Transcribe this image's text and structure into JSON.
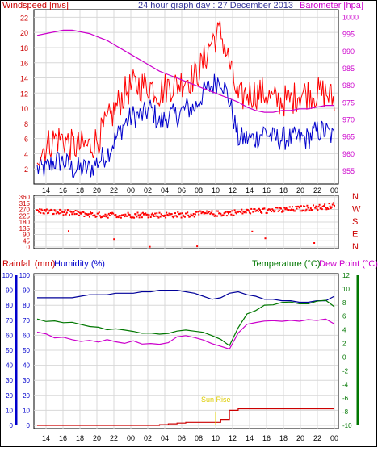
{
  "colors": {
    "wind": "#ff0000",
    "wind_blue": "#0000cc",
    "barometer": "#cc00cc",
    "direction": "#ff0000",
    "rainfall": "#cc0000",
    "humidity": "#000099",
    "temperature": "#007700",
    "dewpoint": "#cc00cc",
    "label_red": "#cc0000",
    "label_blue": "#0000cc",
    "title": "#333399",
    "sunrise": "#ddcc00",
    "grid": "#d8d8d8",
    "frame": "#000000"
  },
  "panel1": {
    "left_label": "Windspeed [m/s]",
    "title": "24 hour graph day : 27 December 2013",
    "right_label": "Barometer [hpa]",
    "wind_ticks": [
      "22",
      "20",
      "18",
      "16",
      "14",
      "12",
      "10",
      "8",
      "6",
      "4",
      "2"
    ],
    "baro_ticks": [
      "1000",
      "995",
      "990",
      "985",
      "980",
      "975",
      "970",
      "965",
      "960",
      "955"
    ]
  },
  "panel2": {
    "dir_ticks": [
      "360",
      "315",
      "270",
      "225",
      "180",
      "135",
      "90",
      "45",
      "0"
    ],
    "compass": [
      "N",
      "W",
      "S",
      "E",
      "N"
    ]
  },
  "panel3": {
    "left_label": "Rainfall (mm)",
    "mid_label": "Humidity (%)",
    "right_label": "Temperature (°C)",
    "right_label2": "Dew Point (°C)",
    "rain_ticks": [
      "100",
      "90",
      "80",
      "70",
      "60",
      "50",
      "40",
      "30",
      "20",
      "10",
      "0"
    ],
    "hum_ticks": [
      "100",
      "90",
      "80",
      "70",
      "60",
      "50",
      "40",
      "30",
      "20",
      "10",
      "0"
    ],
    "temp_ticks": [
      "12",
      "10",
      "8",
      "6",
      "4",
      "2",
      "0",
      "-2",
      "-4",
      "-6",
      "-8",
      "-10"
    ],
    "sunrise_label": "Sun Rise"
  },
  "x_ticks": [
    "14",
    "16",
    "18",
    "20",
    "22",
    "00",
    "02",
    "04",
    "06",
    "08",
    "10",
    "12",
    "14",
    "16",
    "18",
    "20",
    "22",
    "00"
  ],
  "chart_data": [
    {
      "type": "line",
      "title": "24 hour graph day : 27 December 2013",
      "x": [
        "14",
        "15",
        "16",
        "17",
        "18",
        "19",
        "20",
        "21",
        "22",
        "23",
        "00",
        "01",
        "02",
        "03",
        "04",
        "05",
        "06",
        "07",
        "08",
        "09",
        "10",
        "11",
        "12",
        "13",
        "14",
        "15",
        "16",
        "17",
        "18",
        "19",
        "20",
        "21",
        "22",
        "23",
        "00"
      ],
      "ylabel": "Windspeed [m/s]",
      "ylabel_right": "Barometer [hpa]",
      "ylim": [
        0,
        23
      ],
      "ylim_right": [
        951,
        1002
      ],
      "series": [
        {
          "name": "Windspeed [m/s]",
          "axis": "left",
          "values": [
            4,
            5,
            6,
            6,
            5,
            5,
            5,
            6,
            8,
            10,
            12,
            13,
            13,
            13,
            12,
            13,
            13,
            14,
            14,
            16,
            19,
            20,
            16,
            11,
            12,
            12,
            12,
            11,
            11,
            11,
            12,
            12,
            12,
            12,
            11
          ]
        },
        {
          "name": "",
          "axis": "left",
          "values": [
            2,
            2,
            3,
            3,
            2,
            2,
            2,
            3,
            4,
            6,
            8,
            9,
            9,
            10,
            8,
            9,
            9,
            10,
            10,
            12,
            13,
            14,
            11,
            6,
            6,
            6,
            7,
            6,
            6,
            6,
            6,
            6,
            7,
            7,
            6
          ]
        },
        {
          "name": "Barometer [hpa]",
          "axis": "right",
          "values": [
            994.5,
            995,
            995.5,
            996,
            996,
            995.5,
            995,
            994,
            993,
            991.5,
            990,
            988.5,
            987,
            985.5,
            984,
            983,
            982,
            981,
            980,
            979,
            978,
            977,
            976,
            975,
            973.5,
            972.5,
            972,
            972,
            972.5,
            972.5,
            973,
            973,
            973.5,
            974,
            974
          ]
        }
      ]
    },
    {
      "type": "scatter",
      "x": [
        "14",
        "15",
        "16",
        "17",
        "18",
        "19",
        "20",
        "21",
        "22",
        "23",
        "00",
        "01",
        "02",
        "03",
        "04",
        "05",
        "06",
        "07",
        "08",
        "09",
        "10",
        "11",
        "12",
        "13",
        "14",
        "15",
        "16",
        "17",
        "18",
        "19",
        "20",
        "21",
        "22",
        "23",
        "00"
      ],
      "ylim": [
        0,
        360
      ],
      "series": [
        {
          "name": "",
          "values": [
            260,
            255,
            250,
            250,
            245,
            240,
            235,
            230,
            230,
            230,
            230,
            230,
            232,
            232,
            230,
            230,
            232,
            230,
            235,
            240,
            240,
            240,
            245,
            250,
            255,
            260,
            260,
            265,
            265,
            270,
            275,
            280,
            285,
            290,
            300
          ]
        }
      ]
    },
    {
      "type": "line",
      "x": [
        "14",
        "15",
        "16",
        "17",
        "18",
        "19",
        "20",
        "21",
        "22",
        "23",
        "00",
        "01",
        "02",
        "03",
        "04",
        "05",
        "06",
        "07",
        "08",
        "09",
        "10",
        "11",
        "12",
        "13",
        "14",
        "15",
        "16",
        "17",
        "18",
        "19",
        "20",
        "21",
        "22",
        "23",
        "00"
      ],
      "ylabel": "Rainfall (mm) / Humidity (%)",
      "ylabel_right": "Temperature (°C) / Dew Point (°C)",
      "ylim": [
        0,
        100
      ],
      "ylim_right": [
        -10,
        12
      ],
      "series": [
        {
          "name": "Rainfall (mm)",
          "axis": "left",
          "values": [
            0,
            0,
            0,
            0,
            0,
            0,
            0,
            0,
            0,
            0,
            0,
            0,
            0,
            0,
            0.5,
            1,
            1.5,
            2,
            2,
            2,
            2,
            4,
            10,
            11,
            11,
            11,
            11,
            11,
            11,
            11,
            11,
            11,
            11,
            11,
            11
          ]
        },
        {
          "name": "Humidity (%)",
          "axis": "left",
          "values": [
            85,
            85,
            85,
            85,
            85,
            86,
            87,
            87,
            87,
            88,
            88,
            88,
            89,
            89,
            90,
            90,
            90,
            89,
            88,
            86,
            84,
            85,
            88,
            89,
            87,
            86,
            84,
            84,
            83,
            83,
            82,
            82,
            83,
            83,
            86
          ]
        },
        {
          "name": "Temperature (°C)",
          "axis": "right",
          "values": [
            5.5,
            5.3,
            5.2,
            5.0,
            5.0,
            4.8,
            4.6,
            4.4,
            4.2,
            4.0,
            3.8,
            3.7,
            3.6,
            3.4,
            3.5,
            3.6,
            3.8,
            3.8,
            3.7,
            3.5,
            3.2,
            2.5,
            1.8,
            4.5,
            6.5,
            7.0,
            7.5,
            7.8,
            8.0,
            8.2,
            8.0,
            8.0,
            8.1,
            8.2,
            7.5
          ]
        },
        {
          "name": "Dew Point (°C)",
          "axis": "right",
          "values": [
            3.5,
            3.3,
            3.0,
            2.8,
            2.7,
            2.5,
            2.4,
            2.4,
            2.5,
            2.3,
            2.2,
            2.2,
            2.1,
            2.0,
            2.0,
            2.3,
            2.8,
            3.0,
            2.8,
            2.5,
            2.0,
            1.6,
            1.2,
            3.5,
            5.0,
            5.2,
            5.3,
            5.4,
            5.4,
            5.5,
            5.3,
            5.5,
            5.5,
            5.6,
            4.8
          ]
        }
      ]
    }
  ]
}
